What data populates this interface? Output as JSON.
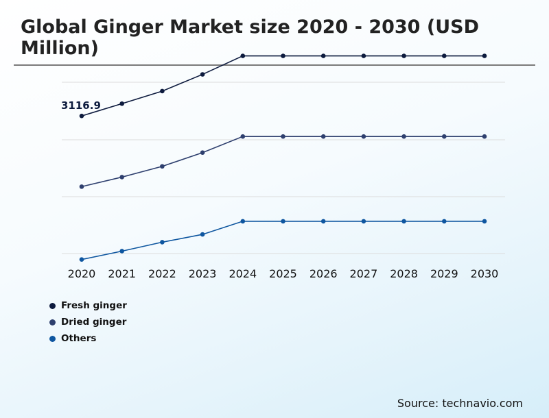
{
  "chart_data": {
    "type": "line",
    "title": "Global Ginger Market size 2020 - 2030 (USD Million)",
    "xlabel": "",
    "ylabel": "",
    "x": [
      "2020",
      "2021",
      "2022",
      "2023",
      "2024",
      "2025",
      "2026",
      "2027",
      "2028",
      "2029",
      "2030"
    ],
    "ylim": [
      1850,
      3560
    ],
    "grid": true,
    "legend_position": "bottom-left",
    "series": [
      {
        "name": "Fresh ginger",
        "color": "#0d1b3e",
        "values": [
          3116.9,
          3220,
          3325,
          3465,
          3620,
          3620,
          3620,
          3620,
          3620,
          3620,
          3620
        ]
      },
      {
        "name": "Dried ginger",
        "color": "#2e3f6e",
        "values": [
          2525,
          2605,
          2695,
          2810,
          2945,
          2945,
          2945,
          2945,
          2945,
          2945,
          2945
        ]
      },
      {
        "name": "Others",
        "color": "#0e56a0",
        "values": [
          1915,
          1985,
          2060,
          2125,
          2235,
          2235,
          2235,
          2235,
          2235,
          2235,
          2235
        ]
      }
    ],
    "annotations": [
      {
        "text": "3116.9",
        "series": 0,
        "index": 0
      }
    ]
  },
  "source": "Source: technavio.com"
}
